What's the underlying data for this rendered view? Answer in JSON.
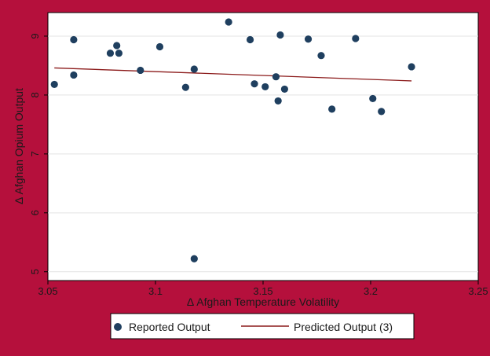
{
  "chart_data": {
    "type": "scatter",
    "xlabel": "Δ Afghan Temperature Volatility",
    "ylabel": "Δ Afghan Opium Output",
    "xlim": [
      3.05,
      3.25
    ],
    "ylim": [
      4.85,
      9.4
    ],
    "xticks": [
      3.05,
      3.1,
      3.15,
      3.2,
      3.25
    ],
    "xtick_labels": [
      "3.05",
      "3.1",
      "3.15",
      "3.2",
      "3.25"
    ],
    "yticks": [
      5,
      6,
      7,
      8,
      9
    ],
    "ytick_labels": [
      "5",
      "6",
      "7",
      "8",
      "9"
    ],
    "grid": "horizontal",
    "legend_position": "bottom",
    "colors": {
      "background": "#b5103c",
      "plot": "#ffffff",
      "points": "#1f3f5f",
      "line": "#8b1a1a"
    },
    "series": [
      {
        "name": "Reported Output",
        "kind": "scatter",
        "points": [
          [
            3.053,
            8.18
          ],
          [
            3.062,
            8.34
          ],
          [
            3.062,
            8.94
          ],
          [
            3.079,
            8.71
          ],
          [
            3.082,
            8.84
          ],
          [
            3.083,
            8.71
          ],
          [
            3.093,
            8.42
          ],
          [
            3.102,
            8.82
          ],
          [
            3.114,
            8.13
          ],
          [
            3.118,
            8.44
          ],
          [
            3.118,
            5.22
          ],
          [
            3.134,
            9.24
          ],
          [
            3.144,
            8.94
          ],
          [
            3.146,
            8.19
          ],
          [
            3.151,
            8.14
          ],
          [
            3.156,
            8.31
          ],
          [
            3.157,
            7.9
          ],
          [
            3.158,
            9.02
          ],
          [
            3.16,
            8.1
          ],
          [
            3.171,
            8.95
          ],
          [
            3.177,
            8.67
          ],
          [
            3.182,
            7.76
          ],
          [
            3.193,
            8.96
          ],
          [
            3.201,
            7.94
          ],
          [
            3.205,
            7.72
          ],
          [
            3.219,
            8.48
          ]
        ]
      },
      {
        "name": "Predicted Output (3)",
        "kind": "line",
        "points": [
          [
            3.053,
            8.46
          ],
          [
            3.219,
            8.24
          ]
        ]
      }
    ]
  }
}
